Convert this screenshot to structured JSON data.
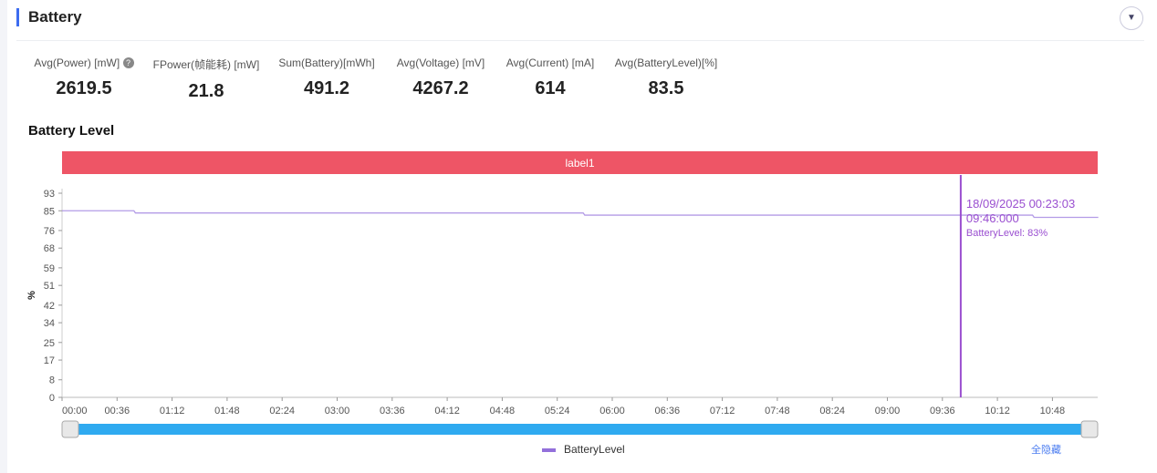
{
  "header": {
    "title": "Battery",
    "collapse_icon": "chevron-down-icon"
  },
  "metrics": [
    {
      "label": "Avg(Power) [mW]",
      "value": "2619.5",
      "help": "?"
    },
    {
      "label": "FPower(帧能耗) [mW]",
      "value": "21.8"
    },
    {
      "label": "Sum(Battery)[mWh]",
      "value": "491.2"
    },
    {
      "label": "Avg(Voltage) [mV]",
      "value": "4267.2"
    },
    {
      "label": "Avg(Current) [mA]",
      "value": "614"
    },
    {
      "label": "Avg(BatteryLevel)[%]",
      "value": "83.5"
    }
  ],
  "chart_title": "Battery Level",
  "chart_data": {
    "type": "line",
    "label_band": "label1",
    "ylabel": "%",
    "ylim": [
      0,
      93
    ],
    "yticks": [
      "0",
      "8",
      "17",
      "25",
      "34",
      "42",
      "51",
      "59",
      "68",
      "76",
      "85",
      "93"
    ],
    "xticks": [
      "00:00",
      "00:36",
      "01:12",
      "01:48",
      "02:24",
      "03:00",
      "03:36",
      "04:12",
      "04:48",
      "05:24",
      "06:00",
      "06:36",
      "07:12",
      "07:48",
      "08:24",
      "09:00",
      "09:36",
      "10:12",
      "10:48"
    ],
    "xlim_minutes": [
      0,
      678
    ],
    "series": [
      {
        "name": "BatteryLevel",
        "color": "#9370db",
        "points": [
          [
            0,
            85
          ],
          [
            47,
            85
          ],
          [
            48,
            84
          ],
          [
            341,
            84
          ],
          [
            342,
            83
          ],
          [
            635,
            83
          ],
          [
            636,
            82
          ],
          [
            678,
            82
          ]
        ]
      }
    ],
    "cursor": {
      "minute": 588,
      "line1": "18/09/2025 00:23:03",
      "line2": "09:46:000",
      "line3": "BatteryLevel: 83%"
    },
    "legend": {
      "label": "BatteryLevel",
      "position": "bottom"
    },
    "hide_all": "全隐藏"
  },
  "colors": {
    "band": "#ee5566",
    "slider": "#2faaf0",
    "accent": "#3c6cf0",
    "cursor": "#9a4fd0"
  }
}
